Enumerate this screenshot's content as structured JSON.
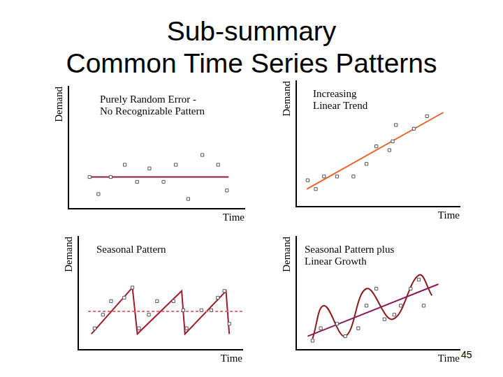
{
  "title": "Sub-summary",
  "subtitle": "Common Time Series Patterns",
  "page_number": 45,
  "chart_data": [
    {
      "type": "scatter",
      "title": [
        "Purely Random Error -",
        "No Recognizable Pattern"
      ],
      "x_label": "Time",
      "y_label": "Demand",
      "xlim": [
        0,
        10
      ],
      "ylim": [
        0,
        10
      ],
      "grid": false,
      "tick_labels": false,
      "legend": "none",
      "series": [
        {
          "type": "scatter",
          "marker": "square",
          "color": "#555555",
          "x": [
            1.2,
            1.7,
            2.4,
            3.2,
            3.9,
            4.6,
            5.4,
            6.1,
            6.8,
            7.6,
            8.5,
            9.0
          ],
          "values": [
            2.6,
            1.2,
            2.6,
            3.6,
            2.2,
            3.3,
            2.2,
            3.6,
            0.8,
            4.4,
            3.6,
            1.5
          ]
        },
        {
          "type": "line",
          "line_style": "solid",
          "color": "#8b1c3c",
          "x": [
            1.2,
            9.1
          ],
          "values": [
            2.6,
            2.6
          ]
        }
      ]
    },
    {
      "type": "scatter",
      "title": [
        "Increasing",
        "Linear Trend"
      ],
      "x_label": "Time",
      "y_label": "Demand",
      "xlim": [
        0,
        10
      ],
      "ylim": [
        0,
        10
      ],
      "grid": false,
      "tick_labels": false,
      "legend": "none",
      "series": [
        {
          "type": "scatter",
          "marker": "square",
          "color": "#555555",
          "x": [
            0.7,
            1.2,
            1.7,
            2.5,
            3.5,
            4.3,
            4.9,
            5.7,
            5.9,
            6.1,
            7.2,
            8.0
          ],
          "values": [
            2.1,
            1.4,
            2.4,
            2.4,
            2.4,
            3.4,
            4.8,
            4.5,
            5.2,
            6.5,
            6.2,
            7.2
          ]
        },
        {
          "type": "line",
          "line_style": "solid",
          "color": "#e8622a",
          "x": [
            0.65,
            9.0
          ],
          "values": [
            1.4,
            7.5
          ]
        }
      ]
    },
    {
      "type": "scatter",
      "title": [
        "Seasonal Pattern"
      ],
      "x_label": "Time",
      "y_label": "Demand",
      "xlim": [
        0,
        10
      ],
      "ylim": [
        0,
        10
      ],
      "grid": false,
      "tick_labels": false,
      "legend": "none",
      "series": [
        {
          "type": "scatter",
          "marker": "square",
          "color": "#555555",
          "x": [
            1.0,
            1.5,
            2.0,
            2.8,
            3.3,
            3.7,
            4.3,
            4.8,
            5.8,
            6.4,
            6.6,
            7.5,
            8.1,
            8.5,
            8.9,
            9.2
          ],
          "values": [
            1.9,
            3.1,
            4.3,
            4.6,
            5.5,
            1.9,
            3.1,
            4.3,
            4.3,
            3.5,
            1.9,
            3.5,
            3.5,
            4.6,
            5.2,
            2.3
          ]
        },
        {
          "type": "line",
          "line_style": "dashed",
          "color": "#e07070",
          "x": [
            0.6,
            10
          ],
          "values": [
            3.4,
            3.4
          ]
        },
        {
          "type": "line",
          "line_style": "solid",
          "color": "#a01c2c",
          "x": [
            0.8,
            3.3,
            3.6,
            6.3,
            6.5,
            9.0,
            9.2
          ],
          "values": [
            1.4,
            5.5,
            1.4,
            5.2,
            1.4,
            5.2,
            1.4
          ]
        }
      ]
    },
    {
      "type": "scatter",
      "title": [
        "Seasonal Pattern plus",
        "Linear Growth"
      ],
      "x_label": "Time",
      "y_label": "Demand",
      "xlim": [
        0,
        10
      ],
      "ylim": [
        0,
        10
      ],
      "grid": false,
      "tick_labels": false,
      "legend": "none",
      "series": [
        {
          "type": "scatter",
          "marker": "square",
          "color": "#555555",
          "x": [
            1.0,
            1.5,
            2.5,
            3.0,
            3.8,
            4.3,
            4.9,
            5.4,
            6.0,
            6.4,
            7.0,
            7.5,
            7.8
          ],
          "values": [
            0.8,
            1.9,
            2.3,
            1.2,
            1.9,
            3.9,
            5.4,
            2.7,
            3.1,
            3.9,
            5.4,
            6.2,
            3.9
          ]
        },
        {
          "type": "line",
          "line_style": "solid",
          "color": "#8b1a5a",
          "x": [
            0.7,
            8.7
          ],
          "values": [
            1.2,
            5.8
          ]
        },
        {
          "type": "line",
          "line_style": "smooth",
          "color": "#8b1a1a",
          "x": [
            1.0,
            1.7,
            3.0,
            4.3,
            5.9,
            7.5,
            8.3
          ],
          "values": [
            1.0,
            3.9,
            1.2,
            5.4,
            2.7,
            6.6,
            4.8
          ]
        }
      ]
    }
  ]
}
